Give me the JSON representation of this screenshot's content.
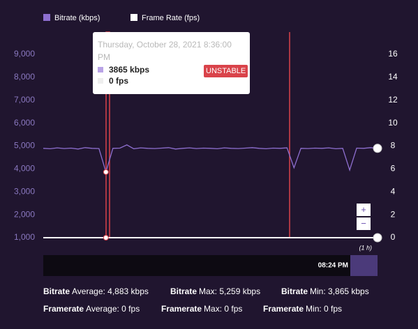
{
  "chart_data": {
    "type": "line",
    "legend": [
      "Bitrate (kbps)",
      "Frame Rate (fps)"
    ],
    "categories": [
      null,
      null,
      null,
      null,
      null,
      null,
      null,
      null,
      null,
      null,
      null,
      null,
      null,
      null,
      null,
      null,
      null,
      null,
      null,
      null,
      null,
      null,
      null,
      null,
      null,
      null,
      null,
      null,
      null,
      null,
      null,
      null,
      null,
      null,
      null,
      null,
      null,
      null,
      null,
      null,
      null,
      null,
      null,
      null,
      null,
      null,
      null,
      null,
      null
    ],
    "series": [
      {
        "name": "Bitrate (kbps)",
        "color": "#8e6fd0",
        "values": [
          4900,
          4880,
          4920,
          4890,
          4910,
          4870,
          4930,
          4900,
          4890,
          3865,
          4900,
          4910,
          5050,
          4880,
          4920,
          4900,
          4890,
          4910,
          4930,
          4870,
          4900,
          4920,
          4890,
          4910,
          4900,
          4880,
          4920,
          4900,
          4890,
          4910,
          4930,
          4900,
          4880,
          4910,
          4900,
          4920,
          4050,
          4900,
          4890,
          4910,
          4900,
          4920,
          4880,
          4900,
          3950,
          4910,
          4900,
          4930,
          4900
        ]
      },
      {
        "name": "Frame Rate (fps)",
        "color": "#ffffff",
        "axis": "y2",
        "values": [
          0,
          0,
          0,
          0,
          0,
          0,
          0,
          0,
          0,
          0,
          0,
          0,
          0,
          0,
          0,
          0,
          0,
          0,
          0,
          0,
          0,
          0,
          0,
          0,
          0,
          0,
          0,
          0,
          0,
          0,
          0,
          0,
          0,
          0,
          0,
          0,
          0,
          0,
          0,
          0,
          0,
          0,
          0,
          0,
          0,
          0,
          0,
          0,
          0
        ]
      }
    ],
    "ylim": [
      1000,
      9000
    ],
    "yticks": [
      {
        "value": 1000,
        "label": "1,000"
      },
      {
        "value": 2000,
        "label": "2,000"
      },
      {
        "value": 3000,
        "label": "3,000"
      },
      {
        "value": 4000,
        "label": "4,000"
      },
      {
        "value": 5000,
        "label": "5,000"
      },
      {
        "value": 6000,
        "label": "6,000"
      },
      {
        "value": 7000,
        "label": "7,000"
      },
      {
        "value": 8000,
        "label": "8,000"
      },
      {
        "value": 9000,
        "label": "9,000"
      }
    ],
    "y2lim": [
      0,
      16
    ],
    "y2ticks": [
      0,
      2,
      4,
      6,
      8,
      10,
      12,
      14,
      16
    ],
    "grid": false,
    "tooltip": {
      "date": "Thursday, October 28, 2021 8:36:00 PM",
      "items": [
        "3865 kbps",
        "0 fps"
      ],
      "status": "UNSTABLE"
    },
    "navigator": {
      "time": "08:24 PM",
      "range": "(1 h)"
    },
    "zoom": [
      "+",
      "−"
    ],
    "stats": [
      [
        {
          "label": "Bitrate",
          "text": "Average: 4,883 kbps"
        },
        {
          "label": "Bitrate",
          "text": "Max: 5,259 kbps"
        },
        {
          "label": "Bitrate",
          "text": "Min: 3,865 kbps"
        }
      ],
      [
        {
          "label": "Framerate",
          "text": "Average: 0 fps"
        },
        {
          "label": "Framerate",
          "text": "Max: 0 fps"
        },
        {
          "label": "Framerate",
          "text": "Min: 0 fps"
        }
      ]
    ]
  }
}
